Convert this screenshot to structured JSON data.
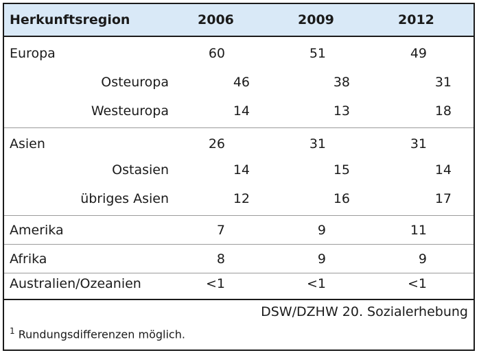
{
  "table": {
    "headers": {
      "region": "Herkunftsregion",
      "y2006": "2006",
      "y2009": "2009",
      "y2012": "2012"
    },
    "rows": [
      {
        "label": "Europa",
        "v2006": "60",
        "v2009": "51",
        "v2012": "49"
      },
      {
        "label": "Osteuropa",
        "v2006": "46",
        "v2009": "38",
        "v2012": "31"
      },
      {
        "label": "Westeuropa",
        "v2006": "14",
        "v2009": "13",
        "v2012": "18"
      },
      {
        "label": "Asien",
        "v2006": "26",
        "v2009": "31",
        "v2012": "31"
      },
      {
        "label": "Ostasien",
        "v2006": "14",
        "v2009": "15",
        "v2012": "14"
      },
      {
        "label": "übriges Asien",
        "v2006": "12",
        "v2009": "16",
        "v2012": "17"
      },
      {
        "label": "Amerika",
        "v2006": "7",
        "v2009": "9",
        "v2012": "11"
      },
      {
        "label": "Afrika",
        "v2006": "8",
        "v2009": "9",
        "v2012": "9"
      },
      {
        "label": "Australien/Ozeanien",
        "v2006": "<1",
        "v2009": "<1",
        "v2012": "<1"
      }
    ]
  },
  "footer": {
    "source": "DSW/DZHW 20. Sozialerhebung",
    "note_marker": "1",
    "note_text": "Rundungsdifferenzen möglich."
  },
  "colors": {
    "header_bg": "#d9e9f7",
    "border": "#1a1a1a"
  }
}
